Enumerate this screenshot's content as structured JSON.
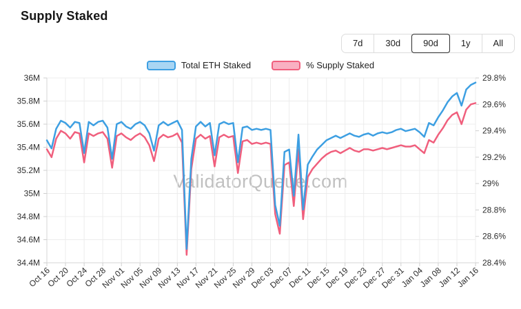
{
  "page": {
    "title": "Supply Staked",
    "watermark": "ValidatorQueue.com",
    "background": "#ffffff"
  },
  "time_range": {
    "options": [
      "7d",
      "30d",
      "90d",
      "1y",
      "All"
    ],
    "selected": "90d"
  },
  "legend": {
    "items": [
      {
        "label": "Total ETH Staked",
        "color": "#3D9FE2",
        "fill": "#A9D5F3"
      },
      {
        "label": "% Supply Staked",
        "color": "#F05F7D",
        "fill": "#F9B0C2"
      }
    ]
  },
  "chart_data": {
    "type": "line",
    "title": "Supply Staked",
    "grid": true,
    "legend_position": "top",
    "x_tick_every": 4,
    "x": [
      "Oct 16",
      "Oct 17",
      "Oct 18",
      "Oct 19",
      "Oct 20",
      "Oct 21",
      "Oct 22",
      "Oct 23",
      "Oct 24",
      "Oct 25",
      "Oct 26",
      "Oct 27",
      "Oct 28",
      "Oct 29",
      "Oct 30",
      "Oct 31",
      "Nov 01",
      "Nov 02",
      "Nov 03",
      "Nov 04",
      "Nov 05",
      "Nov 06",
      "Nov 07",
      "Nov 08",
      "Nov 09",
      "Nov 10",
      "Nov 11",
      "Nov 12",
      "Nov 13",
      "Nov 14",
      "Nov 15",
      "Nov 16",
      "Nov 17",
      "Nov 18",
      "Nov 19",
      "Nov 20",
      "Nov 21",
      "Nov 22",
      "Nov 23",
      "Nov 24",
      "Nov 25",
      "Nov 26",
      "Nov 27",
      "Nov 28",
      "Nov 29",
      "Nov 30",
      "Dec 01",
      "Dec 02",
      "Dec 03",
      "Dec 04",
      "Dec 05",
      "Dec 06",
      "Dec 07",
      "Dec 08",
      "Dec 09",
      "Dec 10",
      "Dec 11",
      "Dec 12",
      "Dec 13",
      "Dec 14",
      "Dec 15",
      "Dec 16",
      "Dec 17",
      "Dec 18",
      "Dec 19",
      "Dec 20",
      "Dec 21",
      "Dec 22",
      "Dec 23",
      "Dec 24",
      "Dec 25",
      "Dec 26",
      "Dec 27",
      "Dec 28",
      "Dec 29",
      "Dec 30",
      "Dec 31",
      "Jan 01",
      "Jan 02",
      "Jan 03",
      "Jan 04",
      "Jan 05",
      "Jan 06",
      "Jan 07",
      "Jan 08",
      "Jan 09",
      "Jan 10",
      "Jan 11",
      "Jan 12",
      "Jan 13",
      "Jan 14",
      "Jan 15",
      "Jan 16"
    ],
    "series": [
      {
        "name": "Total ETH Staked",
        "axis": "left",
        "unit": "M ETH",
        "color": "#3D9FE2",
        "values": [
          35.46,
          35.39,
          35.56,
          35.63,
          35.61,
          35.57,
          35.62,
          35.61,
          35.35,
          35.62,
          35.59,
          35.62,
          35.63,
          35.57,
          35.3,
          35.6,
          35.62,
          35.58,
          35.56,
          35.6,
          35.62,
          35.59,
          35.52,
          35.37,
          35.59,
          35.62,
          35.59,
          35.61,
          35.63,
          35.55,
          34.52,
          35.3,
          35.58,
          35.62,
          35.58,
          35.61,
          35.33,
          35.6,
          35.62,
          35.6,
          35.61,
          35.27,
          35.57,
          35.58,
          35.55,
          35.56,
          35.55,
          35.56,
          35.55,
          34.9,
          34.72,
          35.36,
          35.38,
          34.98,
          35.51,
          34.86,
          35.25,
          35.32,
          35.38,
          35.42,
          35.46,
          35.48,
          35.5,
          35.48,
          35.5,
          35.52,
          35.5,
          35.49,
          35.51,
          35.52,
          35.5,
          35.52,
          35.53,
          35.52,
          35.53,
          35.55,
          35.56,
          35.54,
          35.55,
          35.56,
          35.53,
          35.49,
          35.61,
          35.59,
          35.66,
          35.72,
          35.79,
          35.84,
          35.87,
          35.76,
          35.9,
          35.94,
          35.96
        ]
      },
      {
        "name": "% Supply Staked",
        "axis": "right",
        "unit": "%",
        "color": "#F05F7D",
        "values": [
          29.26,
          29.2,
          29.34,
          29.4,
          29.38,
          29.34,
          29.39,
          29.38,
          29.16,
          29.38,
          29.36,
          29.38,
          29.39,
          29.34,
          29.12,
          29.36,
          29.38,
          29.35,
          29.33,
          29.36,
          29.38,
          29.35,
          29.29,
          29.17,
          29.34,
          29.37,
          29.35,
          29.36,
          29.38,
          29.31,
          28.46,
          29.11,
          29.34,
          29.37,
          29.34,
          29.36,
          29.13,
          29.35,
          29.37,
          29.35,
          29.36,
          29.08,
          29.32,
          29.33,
          29.3,
          29.31,
          29.3,
          29.31,
          29.3,
          28.77,
          28.62,
          29.14,
          29.16,
          28.83,
          29.26,
          28.73,
          29.05,
          29.11,
          29.15,
          29.19,
          29.22,
          29.24,
          29.25,
          29.23,
          29.25,
          29.27,
          29.25,
          29.24,
          29.26,
          29.26,
          29.25,
          29.26,
          29.27,
          29.26,
          29.27,
          29.28,
          29.29,
          29.28,
          29.28,
          29.29,
          29.26,
          29.23,
          29.33,
          29.31,
          29.37,
          29.42,
          29.48,
          29.52,
          29.54,
          29.45,
          29.56,
          29.6,
          29.61
        ]
      }
    ],
    "left_axis": {
      "min": 34.4,
      "max": 36,
      "tick_values": [
        36,
        35.8,
        35.6,
        35.4,
        35.2,
        35,
        34.8,
        34.6,
        34.4
      ],
      "tick_labels": [
        "36M",
        "35.8M",
        "35.6M",
        "35.4M",
        "35.2M",
        "35M",
        "34.8M",
        "34.6M",
        "34.4M"
      ]
    },
    "right_axis": {
      "min": 28.4,
      "max": 29.8,
      "tick_values": [
        29.8,
        29.6,
        29.4,
        29.2,
        29,
        28.8,
        28.6,
        28.4
      ],
      "tick_labels": [
        "29.8%",
        "29.6%",
        "29.4%",
        "29.2%",
        "29%",
        "28.8%",
        "28.6%",
        "28.4%"
      ]
    }
  }
}
